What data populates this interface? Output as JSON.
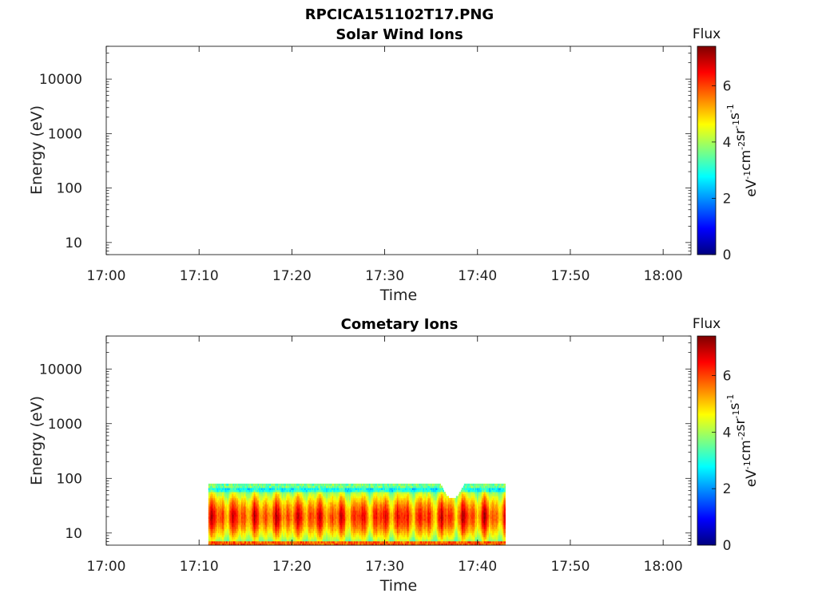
{
  "figure": {
    "title": "RPCICA151102T17.PNG"
  },
  "chart_data": [
    {
      "type": "heatmap",
      "title": "Solar Wind Ions",
      "xlabel": "Time",
      "ylabel": "Energy (eV)",
      "x_ticks": [
        "17:00",
        "17:10",
        "17:20",
        "17:30",
        "17:40",
        "17:50",
        "18:00"
      ],
      "y_ticks": [
        "10",
        "100",
        "1000",
        "10000"
      ],
      "y_scale": "log",
      "xlim": [
        "17:00",
        "18:03"
      ],
      "ylim": [
        6,
        40000
      ],
      "grid": false,
      "colorbar": {
        "label": "Flux",
        "units_base": [
          "eV",
          "cm",
          "sr",
          "s"
        ],
        "units_exponents": [
          "-1",
          "-2",
          "-1",
          "-1"
        ],
        "ticks": [
          "0",
          "2",
          "4",
          "6"
        ],
        "range": [
          0,
          7.4
        ],
        "colormap": [
          "#00007f",
          "#0000ff",
          "#007fff",
          "#00ffff",
          "#7fff7f",
          "#ffff00",
          "#ff7f00",
          "#ff0000",
          "#7f0000"
        ]
      },
      "data": {
        "time_start": "",
        "time_end": "",
        "energy_top": null,
        "note_values": []
      }
    },
    {
      "type": "heatmap",
      "title": "Cometary Ions",
      "xlabel": "Time",
      "ylabel": "Energy (eV)",
      "x_ticks": [
        "17:00",
        "17:10",
        "17:20",
        "17:30",
        "17:40",
        "17:50",
        "18:00"
      ],
      "y_ticks": [
        "10",
        "100",
        "1000",
        "10000"
      ],
      "y_scale": "log",
      "xlim": [
        "17:00",
        "18:03"
      ],
      "ylim": [
        6,
        40000
      ],
      "grid": false,
      "colorbar": {
        "label": "Flux",
        "units_base": [
          "eV",
          "cm",
          "sr",
          "s"
        ],
        "units_exponents": [
          "-1",
          "-2",
          "-1",
          "-1"
        ],
        "ticks": [
          "0",
          "2",
          "4",
          "6"
        ],
        "range": [
          0,
          7.4
        ],
        "colormap": [
          "#00007f",
          "#0000ff",
          "#007fff",
          "#00ffff",
          "#7fff7f",
          "#ffff00",
          "#ff7f00",
          "#ff0000",
          "#7f0000"
        ]
      },
      "data": {
        "time_start": "17:11",
        "time_end": "17:43",
        "energy_bottom": 6,
        "energy_top": 80,
        "energy_peak": 20,
        "flux_peak": 7.0,
        "flux_edge": 3.0
      }
    }
  ]
}
